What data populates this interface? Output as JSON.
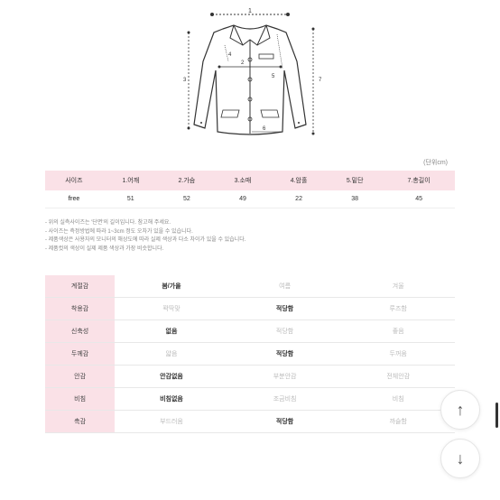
{
  "unit_label": "(단위cm)",
  "diagram": {
    "labels": [
      "1",
      "2",
      "3",
      "4",
      "5",
      "6",
      "7"
    ],
    "stroke": "#333333",
    "fill": "#ffffff"
  },
  "size_table": {
    "headers": [
      "사이즈",
      "1.어깨",
      "2.가슴",
      "3.소매",
      "4.암홀",
      "5.밑단",
      "7.총길이"
    ],
    "row": {
      "label": "free",
      "values": [
        "51",
        "52",
        "49",
        "22",
        "38",
        "45"
      ]
    }
  },
  "notes": [
    "- 위의 실측사이즈는 '단면'의 길이입니다. 참고해 주세요.",
    "- 사이즈는 측정방법에 따라 1~3cm 정도 오차가 있을 수 있습니다.",
    "- 제품색상은 사용자의 모니터의 해상도에 따라 실제 색상과 다소 차이가 있을 수 있습니다.",
    "- 제품컷의 색상이 실제 제품 색상과 가장 비슷합니다."
  ],
  "attributes": [
    {
      "label": "계절감",
      "options": [
        "봄/가을",
        "여름",
        "겨울"
      ],
      "selected": [
        0
      ]
    },
    {
      "label": "착용감",
      "options": [
        "꽉딱맞",
        "적당함",
        "루즈함"
      ],
      "selected": [
        1
      ]
    },
    {
      "label": "신축성",
      "options": [
        "없음",
        "적당함",
        "좋음"
      ],
      "selected": [
        0
      ]
    },
    {
      "label": "두께감",
      "options": [
        "얇음",
        "적당함",
        "두꺼움"
      ],
      "selected": [
        1
      ]
    },
    {
      "label": "안감",
      "options": [
        "안감없음",
        "부분안감",
        "전체안감"
      ],
      "selected": [
        0
      ]
    },
    {
      "label": "비침",
      "options": [
        "비침없음",
        "조금비침",
        "비침"
      ],
      "selected": [
        0
      ]
    },
    {
      "label": "촉감",
      "options": [
        "부드러움",
        "적당함",
        "까슬함"
      ],
      "selected": [
        1
      ]
    }
  ],
  "colors": {
    "header_bg": "#fae1e7",
    "text": "#333333",
    "muted": "#bbbbbb",
    "border": "#e8e8e8"
  }
}
